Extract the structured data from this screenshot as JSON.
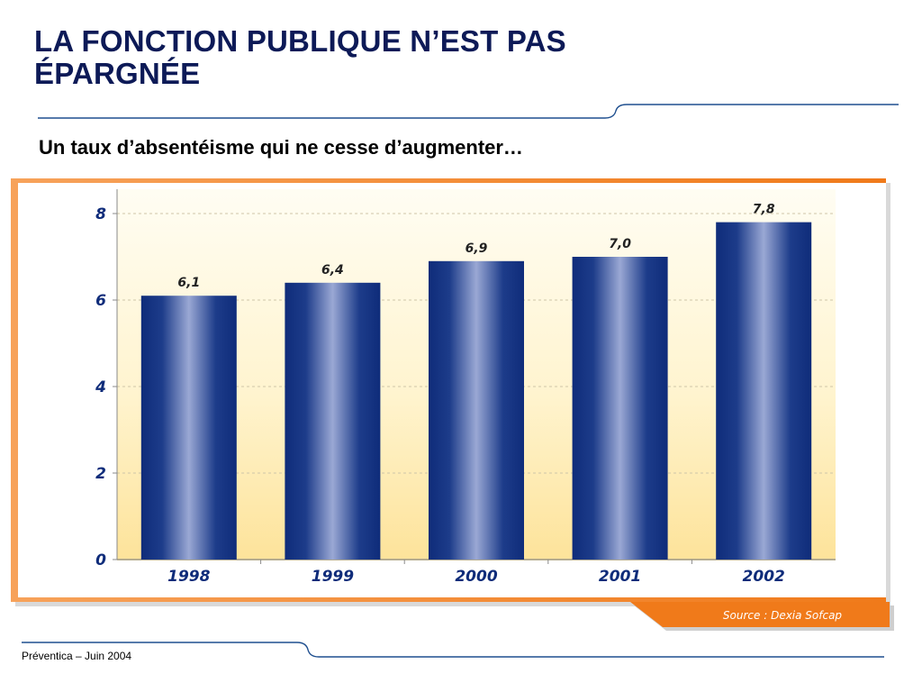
{
  "slide": {
    "title": "LA FONCTION PUBLIQUE N’EST PAS ÉPARGNÉE",
    "subtitle": "Un taux d’absentéisme qui ne cesse d’augmenter…",
    "footer": "Préventica – Juin 2004",
    "source": "Source : Dexia Sofcap"
  },
  "colors": {
    "title": "#0d1a57",
    "rule": "#1f4f8f",
    "frame_orange": "#f07a1a",
    "bar_dark": "#0f2c7a",
    "bar_light": "#8f9fce",
    "panel_top": "#fffdf3",
    "panel_bottom": "#fde7a2"
  },
  "chart_data": {
    "type": "bar",
    "title": "",
    "xlabel": "",
    "ylabel": "",
    "categories": [
      "1998",
      "1999",
      "2000",
      "2001",
      "2002"
    ],
    "values": [
      6.1,
      6.4,
      6.9,
      7.0,
      7.8
    ],
    "value_labels": [
      "6,1",
      "6,4",
      "6,9",
      "7,0",
      "7,8"
    ],
    "ylim": [
      0,
      8
    ],
    "yticks": [
      0,
      2,
      4,
      6,
      8
    ],
    "ytick_labels": [
      "0",
      "2",
      "4",
      "6",
      "8"
    ],
    "grid": true,
    "legend": "none"
  }
}
